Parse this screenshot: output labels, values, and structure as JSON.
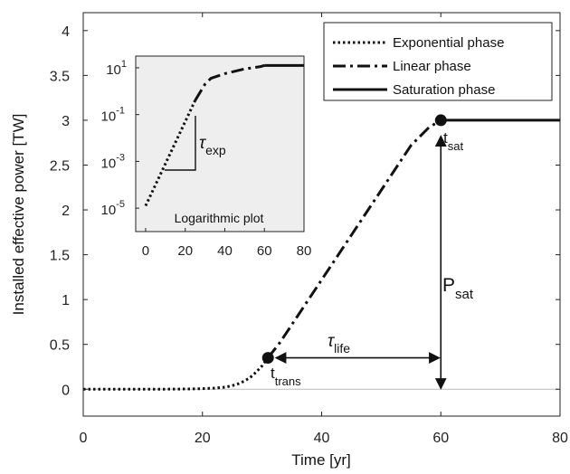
{
  "chart_data": {
    "type": "line",
    "xlabel": "Time [yr]",
    "ylabel": "Installed effective power [TW]",
    "xlim": [
      0,
      80
    ],
    "ylim": [
      -0.3,
      4.2
    ],
    "xticks": [
      "0",
      "20",
      "40",
      "60",
      "80"
    ],
    "yticks": [
      "0",
      "0.5",
      "1",
      "1.5",
      "2",
      "2.5",
      "3",
      "3.5",
      "4"
    ],
    "grid": false,
    "legend_position": "top-right",
    "series": [
      {
        "name": "Exponential phase",
        "style": "dotted",
        "x": [
          0,
          5,
          10,
          15,
          18,
          20,
          22,
          24,
          25,
          26,
          27,
          28,
          29,
          30,
          31
        ],
        "y": [
          0,
          0,
          0,
          0.001,
          0.003,
          0.006,
          0.012,
          0.025,
          0.04,
          0.06,
          0.09,
          0.13,
          0.19,
          0.26,
          0.35
        ]
      },
      {
        "name": "Linear phase",
        "style": "dashdot",
        "x": [
          31,
          33,
          36,
          40,
          45,
          50,
          55,
          58,
          60
        ],
        "y": [
          0.35,
          0.52,
          0.82,
          1.22,
          1.72,
          2.22,
          2.72,
          2.92,
          3.0
        ]
      },
      {
        "name": "Saturation phase",
        "style": "solid",
        "x": [
          60,
          65,
          70,
          75,
          80
        ],
        "y": [
          3.0,
          3.0,
          3.0,
          3.0,
          3.0
        ]
      }
    ],
    "markers": [
      {
        "x": 31,
        "y": 0.35
      },
      {
        "x": 60,
        "y": 3.0
      }
    ],
    "annotations": {
      "t_trans": {
        "main": "t",
        "sub": "trans"
      },
      "t_sat": {
        "main": "t",
        "sub": "sat"
      },
      "P_sat": {
        "main": "P",
        "sub": "sat"
      },
      "tau_life": {
        "main": "τ",
        "sub": "life"
      },
      "tau_exp": {
        "main": "τ",
        "sub": "exp"
      }
    },
    "inset": {
      "title": "Logarithmic plot",
      "xlim": [
        -5,
        80
      ],
      "xticks": [
        "0",
        "20",
        "40",
        "60",
        "80"
      ],
      "ylim_log10": [
        -6,
        1.5
      ],
      "yticks": [
        {
          "base": "10",
          "exp": "1"
        },
        {
          "base": "10",
          "exp": "-1"
        },
        {
          "base": "10",
          "exp": "-3"
        },
        {
          "base": "10",
          "exp": "-5"
        }
      ],
      "background": "#eeeeee",
      "series": [
        {
          "name": "Exponential phase",
          "x": [
            0,
            5,
            10,
            15,
            20,
            25
          ],
          "log10_y": [
            -4.9,
            -4.0,
            -3.1,
            -2.2,
            -1.3,
            -0.4
          ]
        },
        {
          "name": "Linear phase",
          "x": [
            25,
            30,
            33,
            40,
            50,
            58,
            60
          ],
          "log10_y": [
            -0.4,
            0.3,
            0.55,
            0.75,
            0.95,
            1.05,
            1.1
          ]
        },
        {
          "name": "Saturation phase",
          "x": [
            60,
            70,
            80
          ],
          "log10_y": [
            1.1,
            1.1,
            1.1
          ]
        }
      ]
    }
  }
}
